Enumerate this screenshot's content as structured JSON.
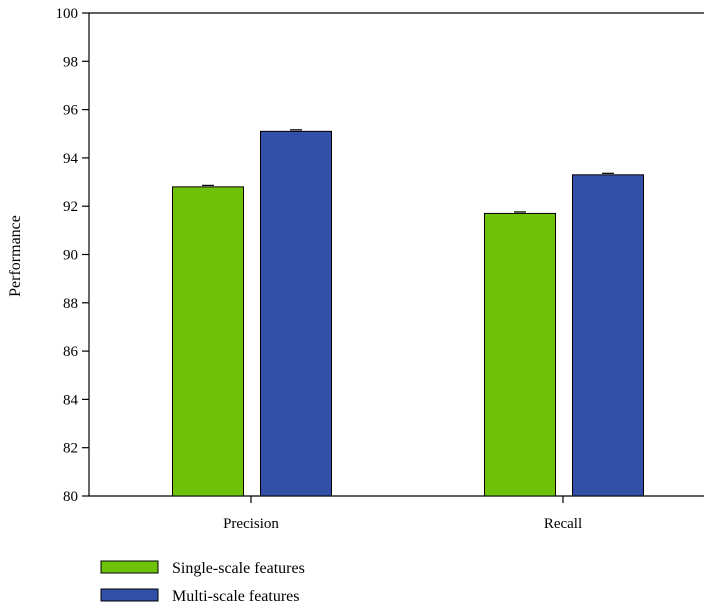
{
  "chart_data": {
    "type": "bar",
    "categories": [
      "Precision",
      "Recall"
    ],
    "series": [
      {
        "name": "Single-scale features",
        "values": [
          92.8,
          91.7
        ],
        "color": "#6ec20a"
      },
      {
        "name": "Multi-scale features",
        "values": [
          95.1,
          93.3
        ],
        "color": "#3350a8"
      }
    ],
    "title": "",
    "xlabel": "",
    "ylabel": "Performance",
    "ylim": [
      80,
      100
    ],
    "yticks": [
      "80",
      "82",
      "84",
      "86",
      "88",
      "90",
      "92",
      "94",
      "96",
      "98",
      "100"
    ],
    "legend_placement": "bottom-left",
    "grid": false,
    "error_bars": true
  }
}
